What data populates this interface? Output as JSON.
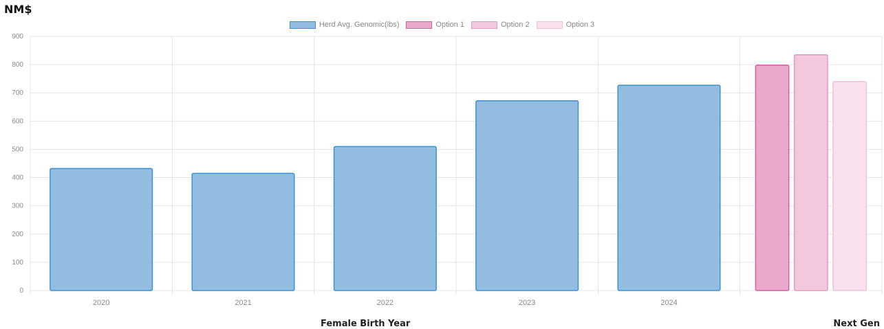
{
  "chart_data": {
    "type": "bar",
    "title": "NM$",
    "xlabel": "Female Birth Year",
    "xlabel_secondary": "Next Gen",
    "ylim": [
      0,
      900
    ],
    "yticks": [
      0,
      100,
      200,
      300,
      400,
      500,
      600,
      700,
      800,
      900
    ],
    "grid": true,
    "legend_position": "top-center",
    "categories": [
      "2020",
      "2021",
      "2022",
      "2023",
      "2024",
      ""
    ],
    "series": [
      {
        "name": "Herd Avg. Genomic(lbs)",
        "values": [
          432,
          415,
          510,
          672,
          727,
          null
        ],
        "fill": "#92bde0",
        "border": "#3a93cf"
      },
      {
        "name": "Option 1",
        "values": [
          null,
          null,
          null,
          null,
          null,
          798
        ],
        "fill": "#e8a9cd",
        "border": "#d95da2"
      },
      {
        "name": "Option 2",
        "values": [
          null,
          null,
          null,
          null,
          null,
          835
        ],
        "fill": "#f2c8df",
        "border": "#e59ac3"
      },
      {
        "name": "Option 3",
        "values": [
          null,
          null,
          null,
          null,
          null,
          740
        ],
        "fill": "#f8e0ec",
        "border": "#f0c3da"
      }
    ]
  }
}
